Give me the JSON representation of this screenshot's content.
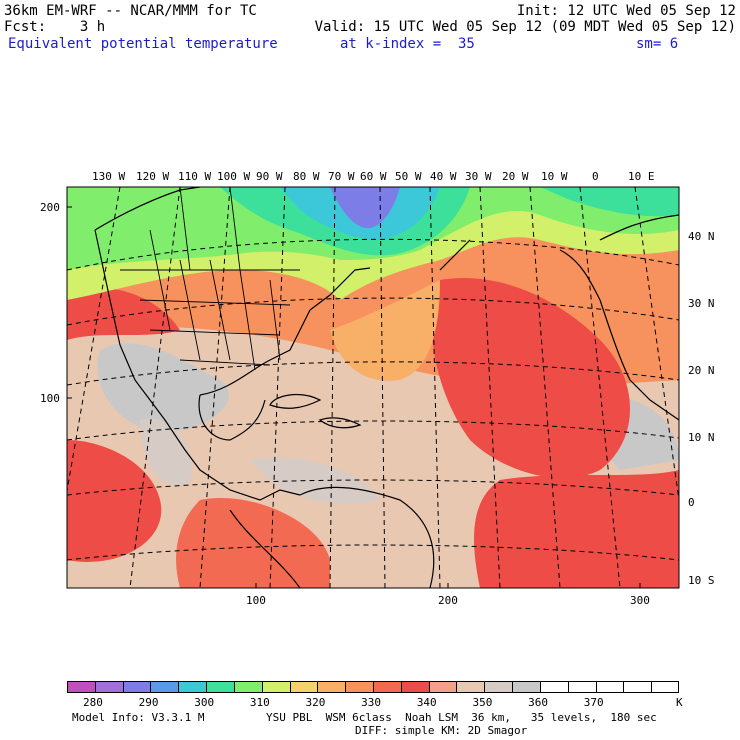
{
  "header": {
    "line1_left": "36km EM-WRF -- NCAR/MMM for TC",
    "line1_right": "Init: 12 UTC Wed 05 Sep 12",
    "line2_left": "Fcst:    3 h",
    "line2_right": "Valid: 15 UTC Wed 05 Sep 12 (09 MDT Wed 05 Sep 12)",
    "field_name": "Equivalent potential temperature",
    "level": "at k-index =  35",
    "smoothing": "sm= 6"
  },
  "map": {
    "top_lon_labels": [
      "130 W",
      "120 W",
      "110 W",
      "100 W",
      "90 W",
      "80 W",
      "70 W",
      "60 W",
      "50 W",
      "40 W",
      "30 W",
      "20 W",
      "10 W",
      "0",
      "10 E"
    ],
    "right_lat_labels": [
      "40 N",
      "30 N",
      "20 N",
      "10 N",
      "0",
      "10 S"
    ],
    "left_grid_labels": [
      "200",
      "100"
    ],
    "bottom_grid_labels": [
      "100",
      "200",
      "300"
    ]
  },
  "colorbar": {
    "colors": [
      "#c04fc0",
      "#a070d8",
      "#7d7de8",
      "#5a9ae8",
      "#3cc8d8",
      "#3ce09a",
      "#80ee6c",
      "#d2f06a",
      "#f6d16e",
      "#f8b068",
      "#f7915e",
      "#f26a52",
      "#ee4c46",
      "#f2a086",
      "#e9c8b2",
      "#d6cbc5",
      "#c8c8c8",
      "#ffffff",
      "#ffffff",
      "#ffffff",
      "#ffffff",
      "#ffffff"
    ],
    "labels": [
      "280",
      "290",
      "300",
      "310",
      "320",
      "330",
      "340",
      "350",
      "360",
      "370"
    ],
    "unit": "K"
  },
  "footer": {
    "model_info": "Model Info: V3.3.1 M",
    "physics_1": "YSU PBL  WSM 6class  Noah LSM  36 km,   35 levels,  180 sec",
    "physics_2": "DIFF: simple KM: 2D Smagor"
  }
}
